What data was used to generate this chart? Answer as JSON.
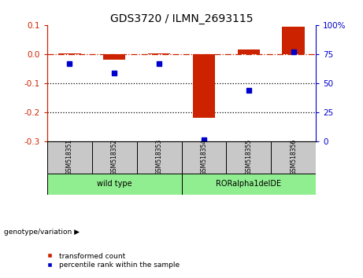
{
  "title": "GDS3720 / ILMN_2693115",
  "samples": [
    "GSM518351",
    "GSM518352",
    "GSM518353",
    "GSM518354",
    "GSM518355",
    "GSM518356"
  ],
  "red_values": [
    0.002,
    -0.02,
    0.001,
    -0.22,
    0.015,
    0.095
  ],
  "blue_values_pct": [
    67,
    59,
    67,
    1,
    44,
    77
  ],
  "ylim_left": [
    -0.3,
    0.1
  ],
  "ylim_right": [
    0,
    100
  ],
  "yticks_left": [
    -0.3,
    -0.2,
    -0.1,
    0.0,
    0.1
  ],
  "yticks_right": [
    0,
    25,
    50,
    75,
    100
  ],
  "red_color": "#CC2200",
  "blue_color": "#0000CC",
  "legend_red": "transformed count",
  "legend_blue": "percentile rank within the sample",
  "dotted_line_color": "#000000",
  "sample_bg": "#C8C8C8",
  "group_color": "#90EE90",
  "bar_width": 0.5,
  "blue_marker_size": 5,
  "group1_label": "wild type",
  "group2_label": "RORalpha1delDE",
  "genotype_label": "genotype/variation"
}
